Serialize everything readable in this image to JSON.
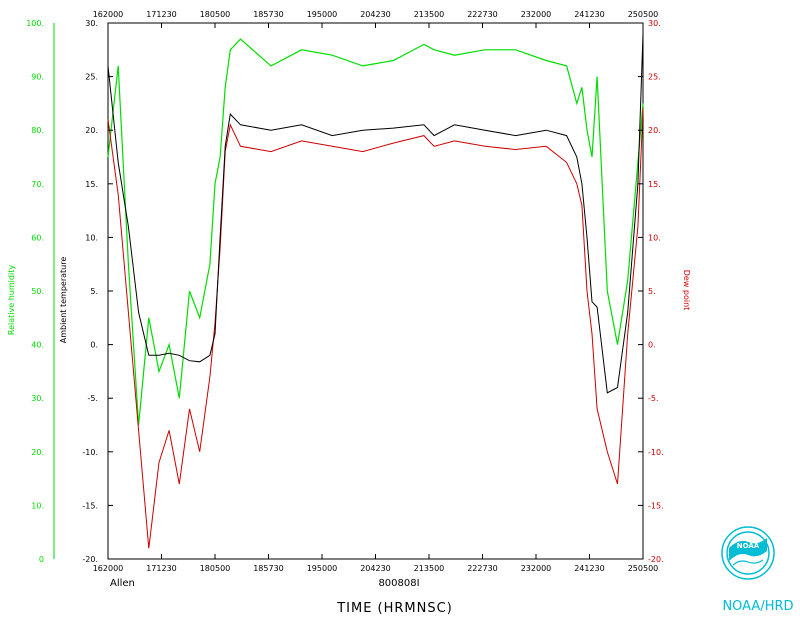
{
  "colors": {
    "frame": "#000000",
    "rh": "#00dd00",
    "dewpoint": "#cc0000",
    "ambient": "#000000",
    "noaa": "#00bcd4"
  },
  "chart_data": {
    "type": "line",
    "xlabel": "TIME (HRMNSC)",
    "bottom_ticks": [
      "162000",
      "171230",
      "180500",
      "185730",
      "195000",
      "204230",
      "213500",
      "222730",
      "232000",
      "241230",
      "250500"
    ],
    "top_ticks": [
      "162000",
      "171230",
      "180500",
      "185730",
      "195000",
      "204230",
      "213500",
      "222730",
      "232000",
      "241230",
      "250500"
    ],
    "x_range": [
      "162000",
      "250500"
    ],
    "left_axis": {
      "label": "Relative humidity",
      "range": [
        0,
        100
      ],
      "ticks": [
        "0",
        "10.",
        "20.",
        "30.",
        "40.",
        "50.",
        "60.",
        "70.",
        "80.",
        "90.",
        "100."
      ]
    },
    "inner_left_axis": {
      "label": "Ambient temperature",
      "range": [
        -20,
        30
      ],
      "ticks": [
        "-20.",
        "-15.",
        "-10.",
        "-5.",
        "0.",
        "5.",
        "10.",
        "15.",
        "20.",
        "25.",
        "30."
      ]
    },
    "right_axis": {
      "label": "Dew point",
      "range": [
        -20,
        30
      ],
      "ticks": [
        "-20.",
        "-15.",
        "-10.",
        "-5.",
        "0.",
        "5.",
        "10.",
        "15.",
        "20.",
        "25.",
        "30."
      ]
    },
    "grid": false,
    "series": [
      {
        "name": "Ambient temperature",
        "color": "#000000",
        "x": [
          "162000",
          "163000",
          "164000",
          "165000",
          "170000",
          "171000",
          "172000",
          "173000",
          "174000",
          "175000",
          "180000",
          "180500",
          "181000",
          "181500",
          "182000",
          "183000",
          "190000",
          "193000",
          "200000",
          "203000",
          "210000",
          "213000",
          "214000",
          "220000",
          "223000",
          "230000",
          "233000",
          "235000",
          "240000",
          "240500",
          "241000",
          "241500",
          "242000",
          "243000",
          "244000",
          "245000",
          "250000",
          "250500"
        ],
        "y": [
          26,
          17,
          11,
          3,
          -1,
          -1,
          -0.8,
          -1,
          -1.5,
          -1.6,
          -1,
          1,
          10,
          18.5,
          21.5,
          20.5,
          20,
          20.5,
          19.5,
          20,
          20.2,
          20.5,
          19.5,
          20.5,
          20,
          19.5,
          20,
          19.5,
          17.5,
          15,
          10,
          4,
          3.5,
          -4.5,
          -4,
          3,
          15,
          29
        ]
      },
      {
        "name": "Dew point",
        "color": "#cc0000",
        "x": [
          "162000",
          "163000",
          "164000",
          "165000",
          "170000",
          "171000",
          "172000",
          "173000",
          "174000",
          "175000",
          "180000",
          "180500",
          "181000",
          "181500",
          "182000",
          "183000",
          "190000",
          "193000",
          "200000",
          "203000",
          "210000",
          "213000",
          "214000",
          "220000",
          "223000",
          "230000",
          "233000",
          "235000",
          "240000",
          "240500",
          "241000",
          "241500",
          "242000",
          "243000",
          "244000",
          "245000",
          "250000",
          "250500"
        ],
        "y": [
          21,
          14,
          3,
          -8,
          -19,
          -11,
          -8,
          -13,
          -6,
          -10,
          -3,
          2,
          9,
          18,
          20.5,
          18.5,
          18,
          19,
          18.5,
          18,
          18.8,
          19.5,
          18.5,
          19,
          18.5,
          18.2,
          18.5,
          17,
          15,
          13,
          5,
          1,
          -6,
          -10,
          -13,
          1,
          11,
          22
        ]
      },
      {
        "name": "Relative humidity",
        "color": "#00dd00",
        "x": [
          "162000",
          "163000",
          "164000",
          "165000",
          "170000",
          "171000",
          "172000",
          "173000",
          "174000",
          "175000",
          "180000",
          "180500",
          "181000",
          "181500",
          "182000",
          "183000",
          "190000",
          "193000",
          "200000",
          "203000",
          "210000",
          "213000",
          "214000",
          "220000",
          "223000",
          "230000",
          "233000",
          "235000",
          "240000",
          "240500",
          "241000",
          "241500",
          "242000",
          "243000",
          "244000",
          "245000",
          "250000",
          "250500"
        ],
        "y": [
          75,
          92,
          55,
          25,
          45,
          35,
          40,
          30,
          50,
          45,
          55,
          70,
          75,
          88,
          95,
          97,
          92,
          95,
          94,
          92,
          93,
          96,
          95,
          94,
          95,
          95,
          93,
          92,
          85,
          88,
          80,
          75,
          90,
          50,
          40,
          52,
          74,
          85
        ]
      }
    ]
  },
  "labels": {
    "storm": "Allen",
    "flight_id": "800808I",
    "brand": "NOAA/HRD",
    "logo_text": "NOAA"
  }
}
